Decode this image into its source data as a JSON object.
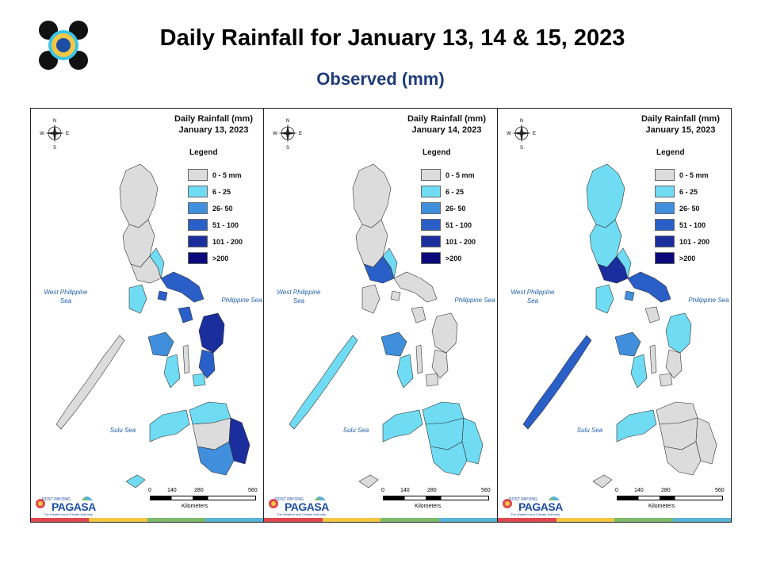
{
  "title": "Daily Rainfall for January 13, 14 & 15, 2023",
  "subtitle": "Observed (mm)",
  "legend": {
    "title": "Legend",
    "items": [
      {
        "label": "0 - 5 mm",
        "color": "#dcdcdc"
      },
      {
        "label": "6 - 25",
        "color": "#6fdcf4"
      },
      {
        "label": "26- 50",
        "color": "#3f8fdc"
      },
      {
        "label": "51 - 100",
        "color": "#2a5fc8"
      },
      {
        "label": "101 - 200",
        "color": "#1b2e9e"
      },
      {
        "label": ">200",
        "color": "#0a0a7a"
      }
    ]
  },
  "compass": {
    "n": "N",
    "s": "S",
    "e": "E",
    "w": "W"
  },
  "seas": {
    "west": "West Philippine Sea",
    "philippine": "Philippine Sea",
    "sulu": "Sulu Sea"
  },
  "scale": {
    "ticks": [
      "0",
      "140",
      "280",
      "560"
    ],
    "unit": "Kilometers"
  },
  "branding": {
    "small": "DOST PAYONG",
    "name": "PAGASA",
    "tagline": "The Weather and Climate Authority"
  },
  "strip_colors": [
    "#e0484f",
    "#f2c744",
    "#7dbb6a",
    "#5ab3d8"
  ],
  "panels": [
    {
      "map_title": "Daily Rainfall (mm)",
      "date": "January 13, 2023",
      "regions": {
        "luzon_north": "#dcdcdc",
        "luzon_central": "#dcdcdc",
        "luzon_south": "#dcdcdc",
        "bicol": "#2a5fc8",
        "quezon_coast": "#6fdcf4",
        "mindoro": "#6fdcf4",
        "marinduque": "#2a5fc8",
        "masbate": "#2a5fc8",
        "samar": "#1b2e9e",
        "leyte": "#2a5fc8",
        "panay": "#3f8fdc",
        "negros": "#6fdcf4",
        "cebu": "#dcdcdc",
        "bohol": "#6fdcf4",
        "palawan": "#dcdcdc",
        "mindanao_north": "#6fdcf4",
        "mindanao_west": "#6fdcf4",
        "mindanao_central": "#dcdcdc",
        "mindanao_east": "#1b2e9e",
        "mindanao_south": "#3f8fdc",
        "sulu": "#6fdcf4"
      }
    },
    {
      "map_title": "Daily Rainfall (mm)",
      "date": "January 14, 2023",
      "regions": {
        "luzon_north": "#dcdcdc",
        "luzon_central": "#dcdcdc",
        "luzon_south": "#2a5fc8",
        "bicol": "#dcdcdc",
        "quezon_coast": "#6fdcf4",
        "mindoro": "#dcdcdc",
        "marinduque": "#dcdcdc",
        "masbate": "#dcdcdc",
        "samar": "#dcdcdc",
        "leyte": "#dcdcdc",
        "panay": "#3f8fdc",
        "negros": "#6fdcf4",
        "cebu": "#dcdcdc",
        "bohol": "#dcdcdc",
        "palawan": "#6fdcf4",
        "mindanao_north": "#6fdcf4",
        "mindanao_west": "#6fdcf4",
        "mindanao_central": "#6fdcf4",
        "mindanao_east": "#6fdcf4",
        "mindanao_south": "#6fdcf4",
        "sulu": "#dcdcdc"
      }
    },
    {
      "map_title": "Daily Rainfall (mm)",
      "date": "January 15, 2023",
      "regions": {
        "luzon_north": "#6fdcf4",
        "luzon_central": "#6fdcf4",
        "luzon_south": "#1b2e9e",
        "bicol": "#2a5fc8",
        "quezon_coast": "#6fdcf4",
        "mindoro": "#6fdcf4",
        "marinduque": "#3f8fdc",
        "masbate": "#dcdcdc",
        "samar": "#6fdcf4",
        "leyte": "#dcdcdc",
        "panay": "#3f8fdc",
        "negros": "#6fdcf4",
        "cebu": "#dcdcdc",
        "bohol": "#dcdcdc",
        "palawan": "#2a5fc8",
        "mindanao_north": "#dcdcdc",
        "mindanao_west": "#6fdcf4",
        "mindanao_central": "#dcdcdc",
        "mindanao_east": "#dcdcdc",
        "mindanao_south": "#dcdcdc",
        "sulu": "#dcdcdc"
      }
    }
  ]
}
